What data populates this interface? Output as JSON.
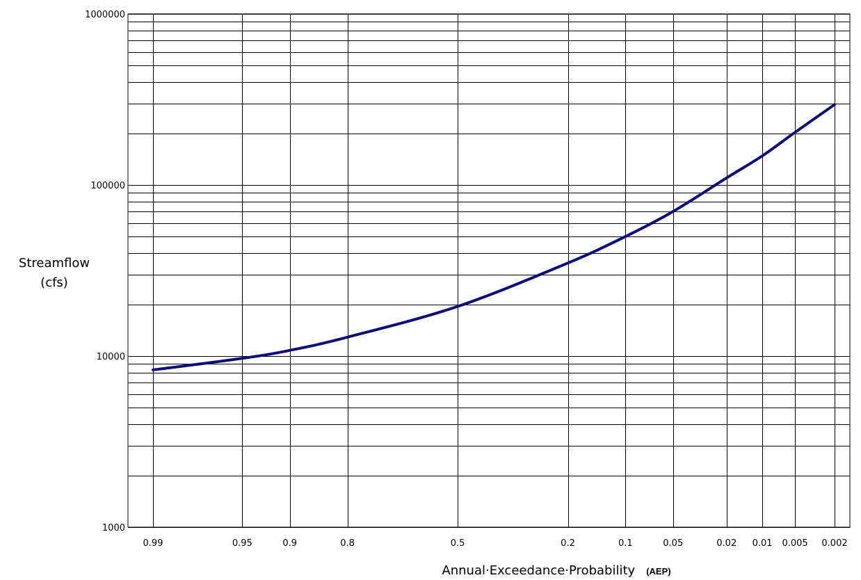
{
  "chart_data": {
    "type": "line",
    "title": "",
    "ylabel_line1": "Streamflow",
    "ylabel_line2": "(cfs)",
    "xlabel_main": "Annual·Exceedance·Probability",
    "xlabel_abbr": "(AEP)",
    "y_scale": "log",
    "ylim": [
      1000,
      1000000
    ],
    "y_ticks": [
      {
        "value": 1000,
        "label": "1000"
      },
      {
        "value": 10000,
        "label": "10000"
      },
      {
        "value": 100000,
        "label": "100000"
      },
      {
        "value": 1000000,
        "label": "1000000"
      }
    ],
    "x_scale": "normal-probability",
    "x_direction": "decreasing",
    "xlim": [
      0.99,
      0.002
    ],
    "x_ticks": [
      {
        "value": 0.99,
        "label": "0.99"
      },
      {
        "value": 0.95,
        "label": "0.95"
      },
      {
        "value": 0.9,
        "label": "0.9"
      },
      {
        "value": 0.8,
        "label": "0.8"
      },
      {
        "value": 0.5,
        "label": "0.5"
      },
      {
        "value": 0.2,
        "label": "0.2"
      },
      {
        "value": 0.1,
        "label": "0.1"
      },
      {
        "value": 0.05,
        "label": "0.05"
      },
      {
        "value": 0.02,
        "label": "0.02"
      },
      {
        "value": 0.01,
        "label": "0.01"
      },
      {
        "value": 0.005,
        "label": "0.005"
      },
      {
        "value": 0.002,
        "label": "0.002"
      }
    ],
    "grid": true,
    "series": [
      {
        "color": "#0c0c7a",
        "points": [
          {
            "x": 0.99,
            "y": 8300
          },
          {
            "x": 0.95,
            "y": 9700
          },
          {
            "x": 0.9,
            "y": 10800
          },
          {
            "x": 0.8,
            "y": 12900
          },
          {
            "x": 0.5,
            "y": 19500
          },
          {
            "x": 0.2,
            "y": 35000
          },
          {
            "x": 0.1,
            "y": 50000
          },
          {
            "x": 0.05,
            "y": 70000
          },
          {
            "x": 0.02,
            "y": 110000
          },
          {
            "x": 0.01,
            "y": 148000
          },
          {
            "x": 0.005,
            "y": 203000
          },
          {
            "x": 0.002,
            "y": 295000
          }
        ]
      }
    ]
  }
}
